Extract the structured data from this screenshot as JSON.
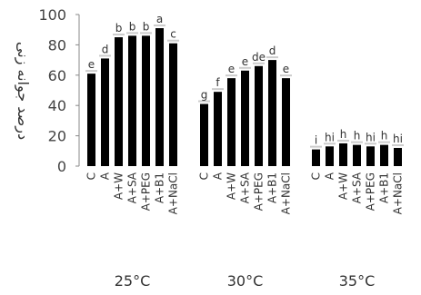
{
  "chart_data": {
    "type": "bar",
    "title": "",
    "xlabel": "",
    "ylabel": "درصد جوانه زنی",
    "ylim": [
      0,
      100
    ],
    "yticks": [
      0,
      20,
      40,
      60,
      80,
      100
    ],
    "grid": false,
    "legend": "none",
    "bar_color": "#000000",
    "error_color": "#cccccc",
    "categories": [
      "C",
      "A",
      "A+W",
      "A+SA",
      "A+PEG",
      "A+B1",
      "A+NaCl"
    ],
    "groups": [
      {
        "label": "25°C",
        "values": [
          61,
          71,
          85,
          86,
          86,
          91,
          81
        ],
        "letters": [
          "e",
          "d",
          "b",
          "b",
          "b",
          "a",
          "c"
        ]
      },
      {
        "label": "30°C",
        "values": [
          41,
          49,
          58,
          63,
          66,
          70,
          58
        ],
        "letters": [
          "g",
          "f",
          "e",
          "e",
          "de",
          "d",
          "e"
        ]
      },
      {
        "label": "35°C",
        "values": [
          11,
          13,
          15,
          14,
          13,
          14,
          12
        ],
        "letters": [
          "i",
          "hi",
          "h",
          "h",
          "hi",
          "h",
          "hi"
        ]
      }
    ]
  }
}
